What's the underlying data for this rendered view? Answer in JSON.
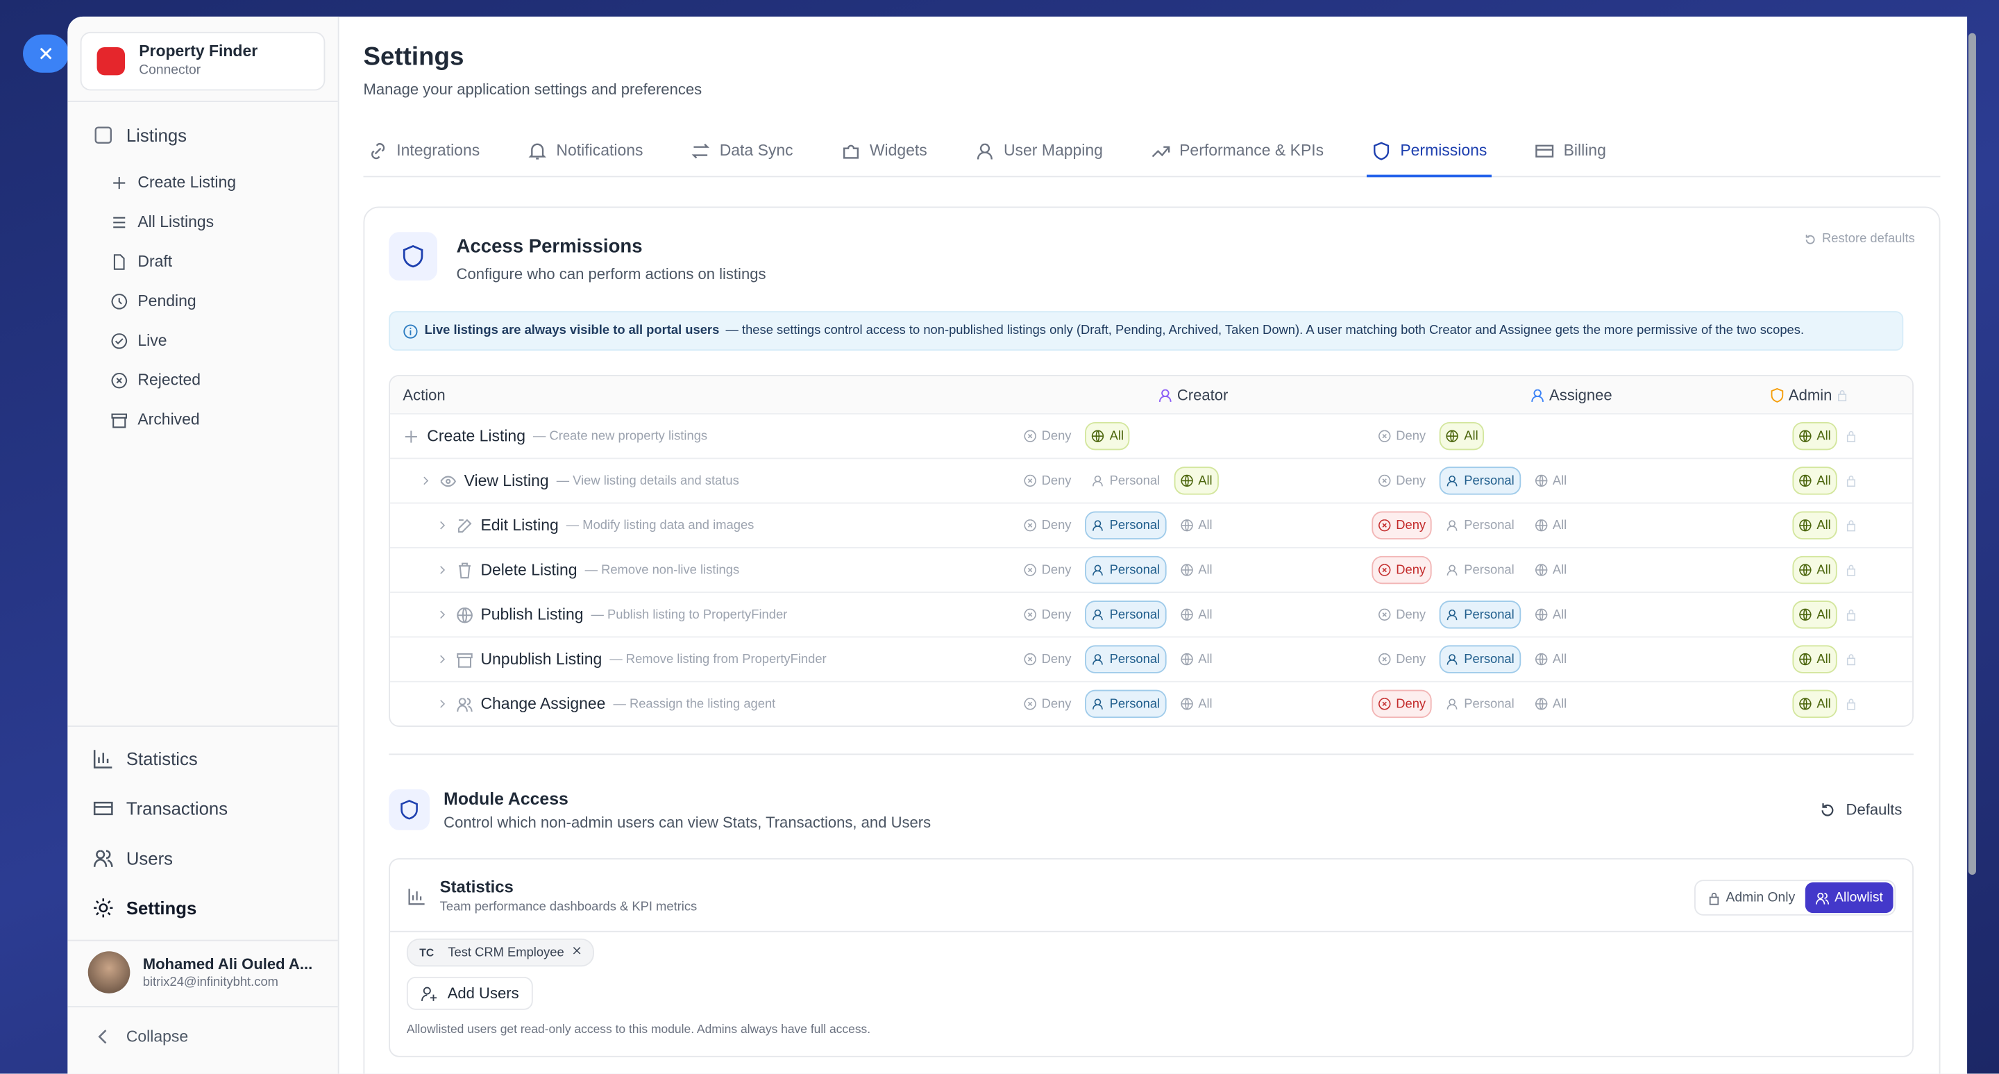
{
  "app": {
    "name": "Property Finder",
    "subtitle": "Connector"
  },
  "sidebar": {
    "section": "Listings",
    "items": [
      "Create Listing",
      "All Listings",
      "Draft",
      "Pending",
      "Live",
      "Rejected",
      "Archived"
    ],
    "bottom": [
      "Statistics",
      "Transactions",
      "Users",
      "Settings"
    ],
    "active_bottom": 3,
    "user": {
      "name": "Mohamed Ali Ouled A...",
      "email": "bitrix24@infinitybht.com"
    },
    "collapse": "Collapse"
  },
  "header": {
    "title": "Settings",
    "subtitle": "Manage your application settings and preferences"
  },
  "tabs": [
    "Integrations",
    "Notifications",
    "Data Sync",
    "Widgets",
    "User Mapping",
    "Performance & KPIs",
    "Permissions",
    "Billing"
  ],
  "active_tab": 6,
  "access": {
    "title": "Access Permissions",
    "subtitle": "Configure who can perform actions on listings",
    "restore": "Restore defaults",
    "notice_bold": "Live listings are always visible to all portal users",
    "notice_text": "— these settings control access to non-published listings only (Draft, Pending, Archived, Taken Down). A user matching both Creator and Assignee gets the more permissive of the two scopes.",
    "columns": [
      "Action",
      "Creator",
      "Assignee",
      "Admin"
    ],
    "rows": [
      {
        "label": "Create Listing",
        "desc": "— Create new property listings",
        "creator": {
          "options": [
            "Deny",
            "All"
          ],
          "selected": 1
        },
        "assignee": {
          "options": [
            "Deny",
            "All"
          ],
          "selected": 1
        },
        "admin": {
          "options": [
            "All"
          ],
          "selected": 0
        }
      },
      {
        "label": "View Listing",
        "desc": "— View listing details and status",
        "creator": {
          "options": [
            "Deny",
            "Personal",
            "All"
          ],
          "selected": 2
        },
        "assignee": {
          "options": [
            "Deny",
            "Personal",
            "All"
          ],
          "selected": 1
        },
        "admin": {
          "options": [
            "All"
          ],
          "selected": 0
        }
      },
      {
        "label": "Edit Listing",
        "desc": "— Modify listing data and images",
        "creator": {
          "options": [
            "Deny",
            "Personal",
            "All"
          ],
          "selected": 1
        },
        "assignee": {
          "options": [
            "Deny",
            "Personal",
            "All"
          ],
          "selected": 0
        },
        "admin": {
          "options": [
            "All"
          ],
          "selected": 0
        }
      },
      {
        "label": "Delete Listing",
        "desc": "— Remove non-live listings",
        "creator": {
          "options": [
            "Deny",
            "Personal",
            "All"
          ],
          "selected": 1
        },
        "assignee": {
          "options": [
            "Deny",
            "Personal",
            "All"
          ],
          "selected": 0
        },
        "admin": {
          "options": [
            "All"
          ],
          "selected": 0
        }
      },
      {
        "label": "Publish Listing",
        "desc": "— Publish listing to PropertyFinder",
        "creator": {
          "options": [
            "Deny",
            "Personal",
            "All"
          ],
          "selected": 1
        },
        "assignee": {
          "options": [
            "Deny",
            "Personal",
            "All"
          ],
          "selected": 1
        },
        "admin": {
          "options": [
            "All"
          ],
          "selected": 0
        }
      },
      {
        "label": "Unpublish Listing",
        "desc": "— Remove listing from PropertyFinder",
        "creator": {
          "options": [
            "Deny",
            "Personal",
            "All"
          ],
          "selected": 1
        },
        "assignee": {
          "options": [
            "Deny",
            "Personal",
            "All"
          ],
          "selected": 1
        },
        "admin": {
          "options": [
            "All"
          ],
          "selected": 0
        }
      },
      {
        "label": "Change Assignee",
        "desc": "— Reassign the listing agent",
        "creator": {
          "options": [
            "Deny",
            "Personal",
            "All"
          ],
          "selected": 1
        },
        "assignee": {
          "options": [
            "Deny",
            "Personal",
            "All"
          ],
          "selected": 0
        },
        "admin": {
          "options": [
            "All"
          ],
          "selected": 0
        }
      }
    ]
  },
  "module": {
    "title": "Module Access",
    "subtitle": "Control which non-admin users can view Stats, Transactions, and Users",
    "defaults": "Defaults",
    "card": {
      "title": "Statistics",
      "subtitle": "Team performance dashboards & KPI metrics",
      "toggle": [
        "Admin Only",
        "Allowlist"
      ],
      "selected": 1,
      "chips": [
        {
          "initials": "TC",
          "name": "Test CRM Employee"
        }
      ],
      "add": "Add Users",
      "note": "Allowlisted users get read-only access to this module. Admins always have full access."
    }
  }
}
